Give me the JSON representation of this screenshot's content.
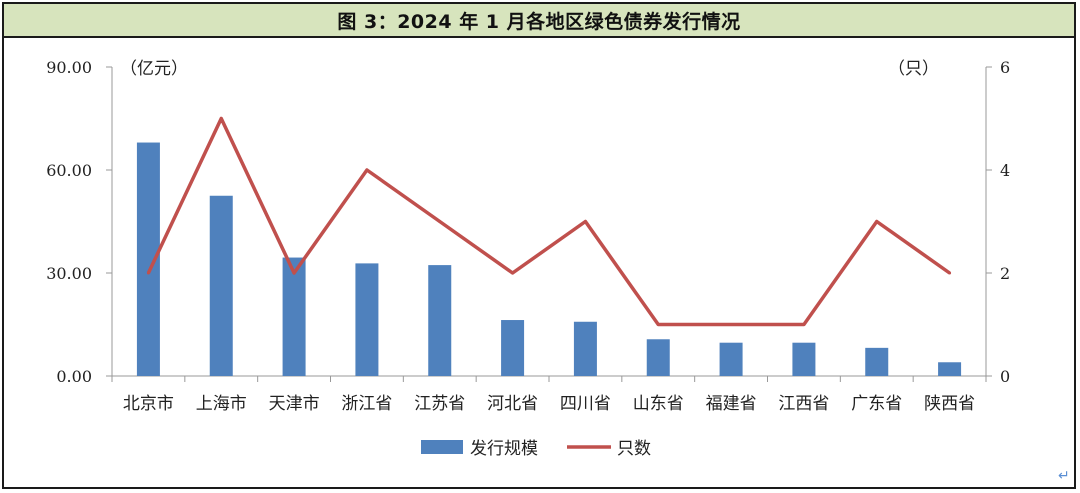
{
  "title": "图 3：2024 年 1 月各地区绿色债券发行情况",
  "colors": {
    "bar": "#4f81bd",
    "line": "#c0504d",
    "title_bg": "#d7e4bd",
    "return_mark": "#5b8fd4"
  },
  "return_mark": "↵",
  "chart_data": {
    "type": "bar",
    "title": "图 3：2024 年 1 月各地区绿色债券发行情况",
    "categories": [
      "北京市",
      "上海市",
      "天津市",
      "浙江省",
      "江苏省",
      "河北省",
      "四川省",
      "山东省",
      "福建省",
      "江西省",
      "广东省",
      "陕西省"
    ],
    "series": [
      {
        "name": "发行规模",
        "type": "bar",
        "axis": "left",
        "values": [
          68,
          52.5,
          34.5,
          32.8,
          32.3,
          16.3,
          15.8,
          10.7,
          9.7,
          9.7,
          8.2,
          4.0
        ]
      },
      {
        "name": "只数",
        "type": "line",
        "axis": "right",
        "values": [
          2,
          5,
          2,
          4,
          3,
          2,
          3,
          1,
          1,
          1,
          3,
          2
        ]
      }
    ],
    "left_axis": {
      "unit": "（亿元）",
      "ylim": [
        0,
        90
      ],
      "ticks": [
        "0.00",
        "30.00",
        "60.00",
        "90.00"
      ]
    },
    "right_axis": {
      "unit": "（只）",
      "ylim": [
        0,
        6
      ],
      "ticks": [
        "0",
        "2",
        "4",
        "6"
      ]
    },
    "grid": false,
    "legend_position": "bottom"
  }
}
